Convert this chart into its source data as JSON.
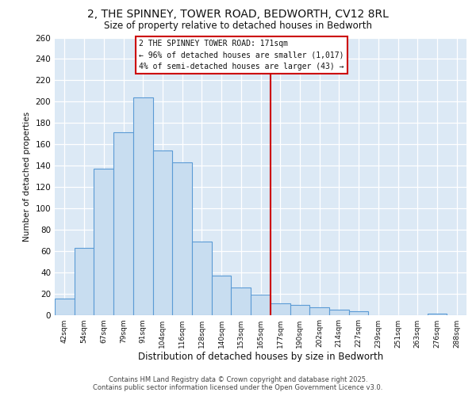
{
  "title_line1": "2, THE SPINNEY, TOWER ROAD, BEDWORTH, CV12 8RL",
  "title_line2": "Size of property relative to detached houses in Bedworth",
  "xlabel": "Distribution of detached houses by size in Bedworth",
  "ylabel": "Number of detached properties",
  "categories": [
    "42sqm",
    "54sqm",
    "67sqm",
    "79sqm",
    "91sqm",
    "104sqm",
    "116sqm",
    "128sqm",
    "140sqm",
    "153sqm",
    "165sqm",
    "177sqm",
    "190sqm",
    "202sqm",
    "214sqm",
    "227sqm",
    "239sqm",
    "251sqm",
    "263sqm",
    "276sqm",
    "288sqm"
  ],
  "values": [
    15,
    63,
    137,
    171,
    204,
    154,
    143,
    69,
    37,
    26,
    19,
    11,
    9,
    7,
    5,
    3,
    0,
    0,
    0,
    1,
    0
  ],
  "bar_color": "#c8ddf0",
  "bar_edge_color": "#5b9bd5",
  "grid_color": "#ffffff",
  "bg_color": "#dce9f5",
  "fig_bg_color": "#ffffff",
  "annotation_text": "2 THE SPINNEY TOWER ROAD: 171sqm\n← 96% of detached houses are smaller (1,017)\n4% of semi-detached houses are larger (43) →",
  "vline_x": 10.5,
  "annotation_box_edgecolor": "#cc0000",
  "ylim_max": 260,
  "ytick_step": 20,
  "footer": "Contains HM Land Registry data © Crown copyright and database right 2025.\nContains public sector information licensed under the Open Government Licence v3.0."
}
